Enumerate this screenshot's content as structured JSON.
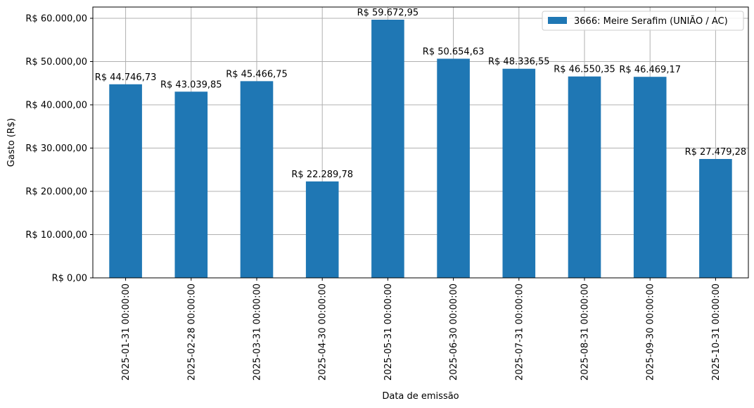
{
  "chart_data": {
    "type": "bar",
    "title": "",
    "xlabel": "Data de emissão",
    "ylabel": "Gasto (R$)",
    "ylim": [
      0,
      62600
    ],
    "yticks": [
      0,
      10000,
      20000,
      30000,
      40000,
      50000,
      60000
    ],
    "ytick_labels": [
      "R$ 0,00",
      "R$ 10.000,00",
      "R$ 20.000,00",
      "R$ 30.000,00",
      "R$ 40.000,00",
      "R$ 50.000,00",
      "R$ 60.000,00"
    ],
    "grid": true,
    "legend_position": "top-right",
    "bar_color": "#1f77b4",
    "categories": [
      "2025-01-31 00:00:00",
      "2025-02-28 00:00:00",
      "2025-03-31 00:00:00",
      "2025-04-30 00:00:00",
      "2025-05-31 00:00:00",
      "2025-06-30 00:00:00",
      "2025-07-31 00:00:00",
      "2025-08-31 00:00:00",
      "2025-09-30 00:00:00",
      "2025-10-31 00:00:00"
    ],
    "series": [
      {
        "name": "3666: Meire Serafim (UNIÃO / AC)",
        "values": [
          44746.73,
          43039.85,
          45466.75,
          22289.78,
          59672.95,
          50654.63,
          48336.55,
          46550.35,
          46469.17,
          27479.28
        ],
        "labels": [
          "R$ 44.746,73",
          "R$ 43.039,85",
          "R$ 45.466,75",
          "R$ 22.289,78",
          "R$ 59.672,95",
          "R$ 50.654,63",
          "R$ 48.336,55",
          "R$ 46.550,35",
          "R$ 46.469,17",
          "R$ 27.479,28"
        ]
      }
    ]
  }
}
